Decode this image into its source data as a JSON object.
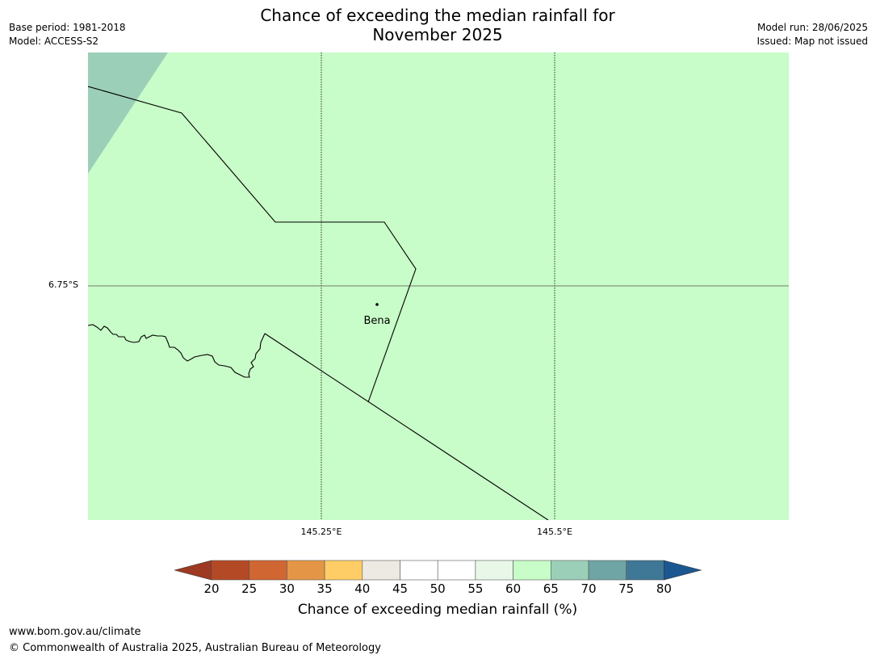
{
  "title_line1": "Chance of exceeding the median rainfall for",
  "title_line2": "November 2025",
  "meta": {
    "base_period": "Base period: 1981-2018",
    "model": "Model: ACCESS-S2",
    "model_run": "Model run: 28/06/2025",
    "issued": "Issued: Map not issued"
  },
  "map": {
    "background_color": "#c8fcc8",
    "corner_color": "#9ccfb8",
    "lat_label": "6.75°S",
    "lon_labels": [
      "145.25°E",
      "145.5°E"
    ],
    "place": {
      "name": "Bena"
    }
  },
  "colorbar": {
    "ticks": [
      "20",
      "25",
      "30",
      "35",
      "40",
      "45",
      "50",
      "55",
      "60",
      "65",
      "70",
      "75",
      "80"
    ],
    "colors": [
      "#9e3a22",
      "#b44a25",
      "#d06632",
      "#e49646",
      "#fecd65",
      "#ede9e3",
      "#ffffff",
      "#ffffff",
      "#e9f7e9",
      "#c8fcc8",
      "#9ccfb8",
      "#6fa5a5",
      "#3f7797",
      "#1b5891"
    ],
    "label": "Chance of exceeding median rainfall (%)"
  },
  "footer": {
    "url": "www.bom.gov.au/climate",
    "copyright": "© Commonwealth of Australia 2025, Australian Bureau of Meteorology"
  }
}
